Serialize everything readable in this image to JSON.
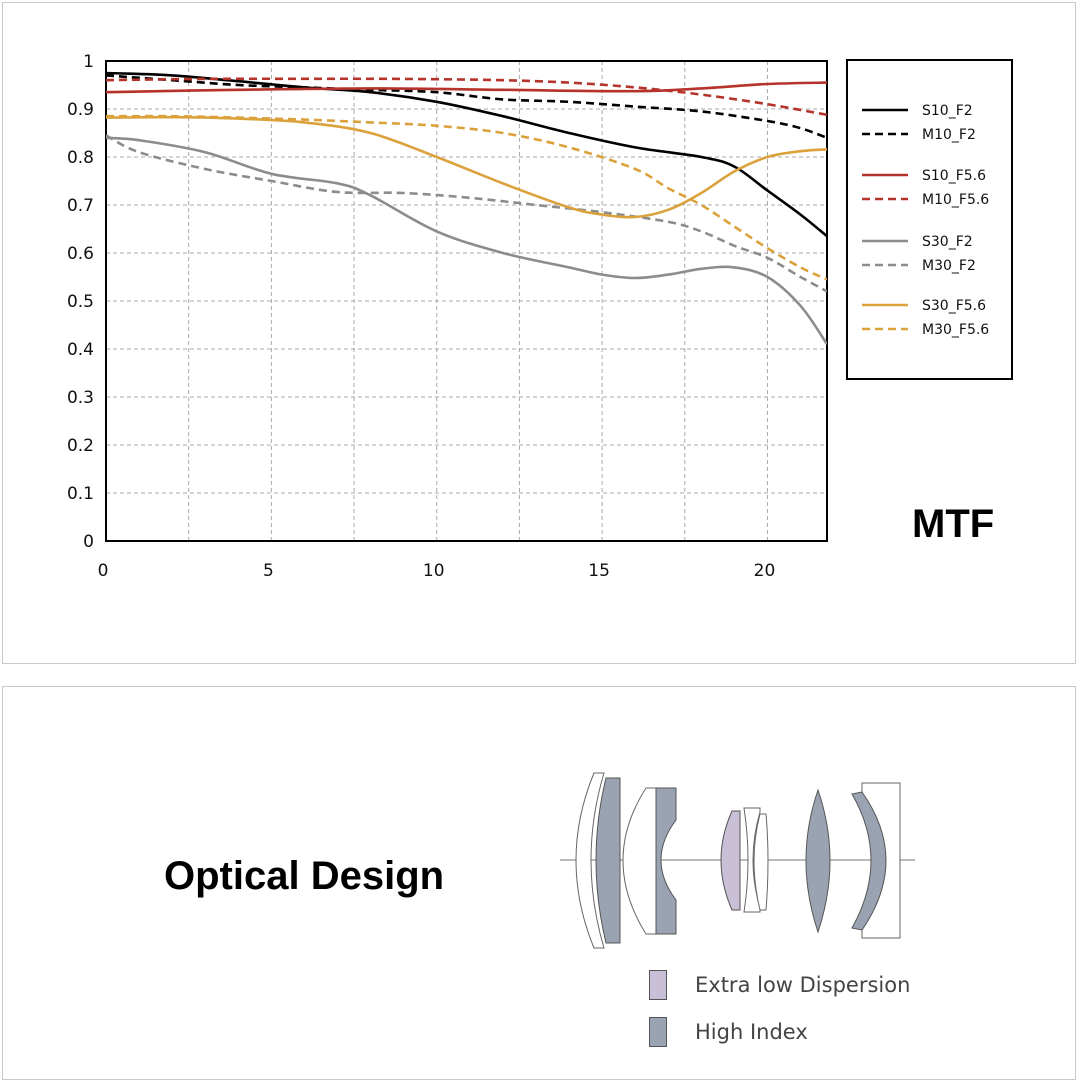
{
  "chart_data": {
    "type": "line",
    "title": "MTF",
    "xlabel": "",
    "ylabel": "",
    "xlim": [
      0,
      21.8
    ],
    "ylim": [
      0,
      1
    ],
    "xticks": [
      0,
      5,
      10,
      15,
      20
    ],
    "yticks": [
      0,
      0.1,
      0.2,
      0.3,
      0.4,
      0.5,
      0.6,
      0.7,
      0.8,
      0.9,
      1
    ],
    "ytick_labels": [
      "0",
      "0.1",
      "0.2",
      "0.3",
      "0.4",
      "0.5",
      "0.6",
      "0.7",
      "0.8",
      "0.9",
      "1"
    ],
    "xtick_labels": [
      "0",
      "5",
      "10",
      "15",
      "20"
    ],
    "grid": true,
    "legend_position": "right",
    "series": [
      {
        "name": "S10_F2",
        "color": "#000000",
        "dashed": false,
        "x": [
          0,
          2,
          4,
          6,
          8,
          10,
          12,
          14,
          16,
          18,
          19,
          20,
          21,
          21.8
        ],
        "y": [
          0.975,
          0.97,
          0.958,
          0.945,
          0.935,
          0.915,
          0.885,
          0.85,
          0.82,
          0.8,
          0.78,
          0.73,
          0.68,
          0.635
        ]
      },
      {
        "name": "M10_F2",
        "color": "#000000",
        "dashed": true,
        "x": [
          0,
          2,
          4,
          6,
          8,
          10,
          12,
          14,
          16,
          18,
          20,
          21,
          21.8
        ],
        "y": [
          0.97,
          0.96,
          0.95,
          0.945,
          0.94,
          0.935,
          0.92,
          0.915,
          0.905,
          0.895,
          0.875,
          0.86,
          0.84
        ]
      },
      {
        "name": "S10_F5.6",
        "color": "#b5332b",
        "dashed": false,
        "x": [
          0,
          4,
          8,
          12,
          16,
          18,
          20,
          21.8
        ],
        "y": [
          0.935,
          0.94,
          0.943,
          0.94,
          0.937,
          0.943,
          0.952,
          0.955
        ]
      },
      {
        "name": "M10_F5.6",
        "color": "#b5332b",
        "dashed": true,
        "x": [
          0,
          2,
          4,
          6,
          8,
          10,
          12,
          14,
          16,
          18,
          20,
          21.8
        ],
        "y": [
          0.96,
          0.962,
          0.963,
          0.963,
          0.963,
          0.962,
          0.96,
          0.955,
          0.945,
          0.93,
          0.91,
          0.888
        ]
      },
      {
        "name": "S30_F2",
        "color": "#8c8c8c",
        "dashed": false,
        "x": [
          0,
          1,
          3,
          5,
          7,
          8,
          10,
          12,
          14,
          15,
          16,
          17,
          18,
          19,
          20,
          21,
          21.8
        ],
        "y": [
          0.84,
          0.835,
          0.81,
          0.765,
          0.745,
          0.72,
          0.645,
          0.6,
          0.57,
          0.555,
          0.548,
          0.555,
          0.567,
          0.57,
          0.55,
          0.49,
          0.41
        ]
      },
      {
        "name": "M30_F2",
        "color": "#8c8c8c",
        "dashed": true,
        "x": [
          0,
          1,
          3,
          5,
          7,
          9,
          11,
          13,
          15,
          17,
          18,
          19,
          20,
          21,
          21.8
        ],
        "y": [
          0.845,
          0.81,
          0.775,
          0.75,
          0.727,
          0.725,
          0.715,
          0.7,
          0.685,
          0.665,
          0.645,
          0.615,
          0.59,
          0.55,
          0.52
        ]
      },
      {
        "name": "S30_F5.6",
        "color": "#dba23c",
        "dashed": false,
        "x": [
          0,
          2,
          4,
          6,
          8,
          10,
          12,
          14,
          15,
          16,
          17,
          18,
          19,
          20,
          21,
          21.8
        ],
        "y": [
          0.882,
          0.883,
          0.88,
          0.872,
          0.85,
          0.8,
          0.745,
          0.695,
          0.68,
          0.675,
          0.69,
          0.725,
          0.77,
          0.8,
          0.812,
          0.816
        ]
      },
      {
        "name": "M30_F5.6",
        "color": "#dba23c",
        "dashed": true,
        "x": [
          0,
          2,
          4,
          6,
          8,
          10,
          12,
          14,
          16,
          17,
          18,
          19,
          20,
          21,
          21.8
        ],
        "y": [
          0.885,
          0.885,
          0.882,
          0.878,
          0.872,
          0.865,
          0.85,
          0.82,
          0.775,
          0.735,
          0.7,
          0.655,
          0.61,
          0.57,
          0.545
        ]
      }
    ]
  },
  "mtf": {
    "title": "MTF"
  },
  "optics": {
    "title": "Optical Design",
    "legend": [
      {
        "label": "Extra low Dispersion",
        "color": "#c9bfd6"
      },
      {
        "label": "High Index",
        "color": "#9aa3b2"
      }
    ]
  }
}
